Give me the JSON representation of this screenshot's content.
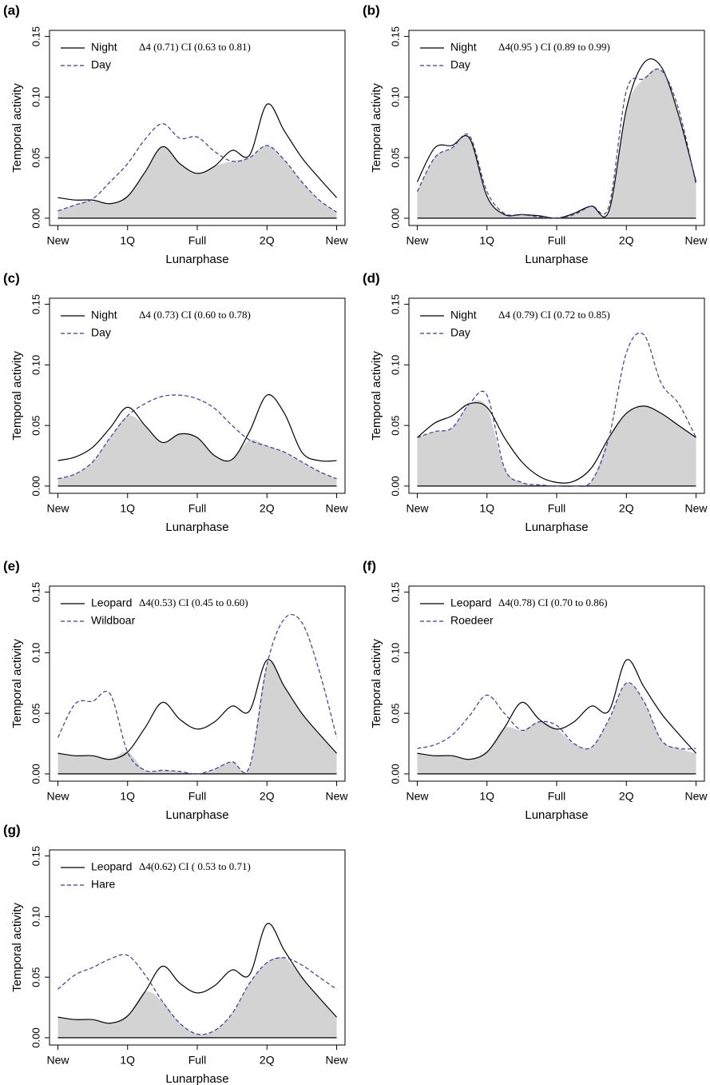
{
  "chart_data": [
    {
      "type": "line",
      "panel": "(a)",
      "annotation": "Δ4 (0.71) CI (0.63 to 0.81)",
      "xlabel": "Lunarphase",
      "ylabel": "Temporal activity",
      "x": [
        0,
        0.25,
        0.5,
        0.75,
        1,
        1.25,
        1.5,
        1.75,
        2,
        2.25,
        2.5,
        2.75,
        3,
        3.25,
        3.5,
        3.75,
        4
      ],
      "xlim": [
        -0.12,
        4.12
      ],
      "ylim": [
        -0.006,
        0.155
      ],
      "overlap_color": "#d3d3d3",
      "xticks": [
        {
          "value": 0,
          "label": "New"
        },
        {
          "value": 1,
          "label": "1Q"
        },
        {
          "value": 2,
          "label": "Full"
        },
        {
          "value": 3,
          "label": "2Q"
        },
        {
          "value": 4,
          "label": "New"
        }
      ],
      "yticks": [
        {
          "value": 0,
          "label": "0.00"
        },
        {
          "value": 0.05,
          "label": "0.05"
        },
        {
          "value": 0.1,
          "label": "0.10"
        },
        {
          "value": 0.15,
          "label": "0.15"
        }
      ],
      "series": [
        {
          "name": "Night",
          "color": "#000000",
          "style": "solid",
          "values": [
            0.017,
            0.015,
            0.015,
            0.012,
            0.018,
            0.038,
            0.059,
            0.045,
            0.037,
            0.043,
            0.056,
            0.052,
            0.094,
            0.072,
            0.05,
            0.033,
            0.017
          ]
        },
        {
          "name": "Day",
          "color": "#3a3a9a",
          "style": "dashed",
          "values": [
            0.006,
            0.011,
            0.016,
            0.03,
            0.045,
            0.065,
            0.078,
            0.066,
            0.067,
            0.055,
            0.047,
            0.05,
            0.06,
            0.048,
            0.03,
            0.015,
            0.005
          ]
        }
      ]
    },
    {
      "type": "line",
      "panel": "(b)",
      "annotation": "Δ4(0.95 ) CI (0.89 to 0.99)",
      "xlabel": "Lunarphase",
      "ylabel": "Temporal activity",
      "x": [
        0,
        0.25,
        0.5,
        0.75,
        1,
        1.25,
        1.5,
        1.75,
        2,
        2.25,
        2.5,
        2.75,
        3,
        3.25,
        3.5,
        3.75,
        4
      ],
      "xlim": [
        -0.12,
        4.12
      ],
      "ylim": [
        -0.006,
        0.155
      ],
      "overlap_color": "#d3d3d3",
      "xticks": [
        {
          "value": 0,
          "label": "New"
        },
        {
          "value": 1,
          "label": "1Q"
        },
        {
          "value": 2,
          "label": "Full"
        },
        {
          "value": 3,
          "label": "2Q"
        },
        {
          "value": 4,
          "label": "New"
        }
      ],
      "yticks": [
        {
          "value": 0,
          "label": "0.00"
        },
        {
          "value": 0.05,
          "label": "0.05"
        },
        {
          "value": 0.1,
          "label": "0.10"
        },
        {
          "value": 0.15,
          "label": "0.15"
        }
      ],
      "series": [
        {
          "name": "Night",
          "color": "#000000",
          "style": "solid",
          "values": [
            0.03,
            0.058,
            0.06,
            0.066,
            0.018,
            0.003,
            0.003,
            0.002,
            0.0,
            0.004,
            0.01,
            0.006,
            0.09,
            0.128,
            0.125,
            0.085,
            0.03
          ]
        },
        {
          "name": "Day",
          "color": "#3a3a9a",
          "style": "dashed",
          "values": [
            0.022,
            0.05,
            0.058,
            0.068,
            0.022,
            0.004,
            0.003,
            0.001,
            0.0,
            0.003,
            0.01,
            0.01,
            0.105,
            0.115,
            0.122,
            0.09,
            0.028
          ]
        }
      ]
    },
    {
      "type": "line",
      "panel": "(c)",
      "annotation": "Δ4 (0.73) CI (0.60 to 0.78)",
      "xlabel": "Lunarphase",
      "ylabel": "Temporal activity",
      "x": [
        0,
        0.25,
        0.5,
        0.75,
        1,
        1.25,
        1.5,
        1.75,
        2,
        2.25,
        2.5,
        2.75,
        3,
        3.25,
        3.5,
        3.75,
        4
      ],
      "xlim": [
        -0.12,
        4.12
      ],
      "ylim": [
        -0.006,
        0.155
      ],
      "overlap_color": "#d3d3d3",
      "xticks": [
        {
          "value": 0,
          "label": "New"
        },
        {
          "value": 1,
          "label": "1Q"
        },
        {
          "value": 2,
          "label": "Full"
        },
        {
          "value": 3,
          "label": "2Q"
        },
        {
          "value": 4,
          "label": "New"
        }
      ],
      "yticks": [
        {
          "value": 0,
          "label": "0.00"
        },
        {
          "value": 0.05,
          "label": "0.05"
        },
        {
          "value": 0.1,
          "label": "0.10"
        },
        {
          "value": 0.15,
          "label": "0.15"
        }
      ],
      "series": [
        {
          "name": "Night",
          "color": "#000000",
          "style": "solid",
          "values": [
            0.021,
            0.024,
            0.032,
            0.048,
            0.065,
            0.05,
            0.036,
            0.043,
            0.04,
            0.025,
            0.022,
            0.045,
            0.075,
            0.06,
            0.028,
            0.021,
            0.021
          ]
        },
        {
          "name": "Day",
          "color": "#3a3a9a",
          "style": "dashed",
          "values": [
            0.006,
            0.01,
            0.02,
            0.04,
            0.058,
            0.068,
            0.074,
            0.075,
            0.072,
            0.064,
            0.05,
            0.038,
            0.033,
            0.028,
            0.02,
            0.012,
            0.006
          ]
        }
      ]
    },
    {
      "type": "line",
      "panel": "(d)",
      "annotation": "Δ4 (0.79) CI (0.72 to 0.85)",
      "xlabel": "Lunarphase",
      "ylabel": "Temporal activity",
      "x": [
        0,
        0.25,
        0.5,
        0.75,
        1,
        1.25,
        1.5,
        1.75,
        2,
        2.25,
        2.5,
        2.75,
        3,
        3.25,
        3.5,
        3.75,
        4
      ],
      "xlim": [
        -0.12,
        4.12
      ],
      "ylim": [
        -0.006,
        0.155
      ],
      "overlap_color": "#d3d3d3",
      "xticks": [
        {
          "value": 0,
          "label": "New"
        },
        {
          "value": 1,
          "label": "1Q"
        },
        {
          "value": 2,
          "label": "Full"
        },
        {
          "value": 3,
          "label": "2Q"
        },
        {
          "value": 4,
          "label": "New"
        }
      ],
      "yticks": [
        {
          "value": 0,
          "label": "0.00"
        },
        {
          "value": 0.05,
          "label": "0.05"
        },
        {
          "value": 0.1,
          "label": "0.10"
        },
        {
          "value": 0.15,
          "label": "0.15"
        }
      ],
      "series": [
        {
          "name": "Night",
          "color": "#000000",
          "style": "solid",
          "values": [
            0.04,
            0.052,
            0.058,
            0.068,
            0.065,
            0.04,
            0.02,
            0.008,
            0.003,
            0.004,
            0.015,
            0.04,
            0.06,
            0.066,
            0.06,
            0.05,
            0.04
          ]
        },
        {
          "name": "Day",
          "color": "#3a3a9a",
          "style": "dashed",
          "values": [
            0.04,
            0.045,
            0.048,
            0.068,
            0.075,
            0.015,
            0.003,
            0.001,
            0.0,
            0.0,
            0.004,
            0.04,
            0.11,
            0.125,
            0.085,
            0.068,
            0.04
          ]
        }
      ]
    },
    {
      "type": "line",
      "panel": "(e)",
      "annotation": "Δ4(0.53) CI (0.45 to 0.60)",
      "xlabel": "Lunarphase",
      "ylabel": "Temporal activity",
      "x": [
        0,
        0.25,
        0.5,
        0.75,
        1,
        1.25,
        1.5,
        1.75,
        2,
        2.25,
        2.5,
        2.75,
        3,
        3.25,
        3.5,
        3.75,
        4
      ],
      "xlim": [
        -0.12,
        4.12
      ],
      "ylim": [
        -0.006,
        0.155
      ],
      "overlap_color": "#d3d3d3",
      "xticks": [
        {
          "value": 0,
          "label": "New"
        },
        {
          "value": 1,
          "label": "1Q"
        },
        {
          "value": 2,
          "label": "Full"
        },
        {
          "value": 3,
          "label": "2Q"
        },
        {
          "value": 4,
          "label": "New"
        }
      ],
      "yticks": [
        {
          "value": 0,
          "label": "0.00"
        },
        {
          "value": 0.05,
          "label": "0.05"
        },
        {
          "value": 0.1,
          "label": "0.10"
        },
        {
          "value": 0.15,
          "label": "0.15"
        }
      ],
      "series": [
        {
          "name": "Leopard",
          "color": "#000000",
          "style": "solid",
          "values": [
            0.017,
            0.015,
            0.015,
            0.012,
            0.018,
            0.038,
            0.059,
            0.045,
            0.037,
            0.043,
            0.056,
            0.052,
            0.094,
            0.072,
            0.05,
            0.033,
            0.017
          ]
        },
        {
          "name": "Wildboar",
          "color": "#3a3a9a",
          "style": "dashed",
          "values": [
            0.03,
            0.058,
            0.06,
            0.066,
            0.018,
            0.003,
            0.003,
            0.002,
            0.0,
            0.004,
            0.01,
            0.006,
            0.09,
            0.128,
            0.125,
            0.085,
            0.03
          ]
        }
      ]
    },
    {
      "type": "line",
      "panel": "(f)",
      "annotation": "Δ4(0.78) CI (0.70 to 0.86)",
      "xlabel": "Lunarphase",
      "ylabel": "Temporal activity",
      "x": [
        0,
        0.25,
        0.5,
        0.75,
        1,
        1.25,
        1.5,
        1.75,
        2,
        2.25,
        2.5,
        2.75,
        3,
        3.25,
        3.5,
        3.75,
        4
      ],
      "xlim": [
        -0.12,
        4.12
      ],
      "ylim": [
        -0.006,
        0.155
      ],
      "overlap_color": "#d3d3d3",
      "xticks": [
        {
          "value": 0,
          "label": "New"
        },
        {
          "value": 1,
          "label": "1Q"
        },
        {
          "value": 2,
          "label": "Full"
        },
        {
          "value": 3,
          "label": "2Q"
        },
        {
          "value": 4,
          "label": "New"
        }
      ],
      "yticks": [
        {
          "value": 0,
          "label": "0.00"
        },
        {
          "value": 0.05,
          "label": "0.05"
        },
        {
          "value": 0.1,
          "label": "0.10"
        },
        {
          "value": 0.15,
          "label": "0.15"
        }
      ],
      "series": [
        {
          "name": "Leopard",
          "color": "#000000",
          "style": "solid",
          "values": [
            0.017,
            0.015,
            0.015,
            0.012,
            0.018,
            0.038,
            0.059,
            0.045,
            0.037,
            0.043,
            0.056,
            0.052,
            0.094,
            0.072,
            0.05,
            0.033,
            0.017
          ]
        },
        {
          "name": "Roedeer",
          "color": "#3a3a9a",
          "style": "dashed",
          "values": [
            0.021,
            0.024,
            0.032,
            0.048,
            0.065,
            0.05,
            0.036,
            0.043,
            0.04,
            0.025,
            0.022,
            0.045,
            0.075,
            0.06,
            0.028,
            0.021,
            0.021
          ]
        }
      ]
    },
    {
      "type": "line",
      "panel": "(g)",
      "annotation": "Δ4(0.62) CI ( 0.53 to 0.71)",
      "xlabel": "Lunarphase",
      "ylabel": "Temporal activity",
      "x": [
        0,
        0.25,
        0.5,
        0.75,
        1,
        1.25,
        1.5,
        1.75,
        2,
        2.25,
        2.5,
        2.75,
        3,
        3.25,
        3.5,
        3.75,
        4
      ],
      "xlim": [
        -0.12,
        4.12
      ],
      "ylim": [
        -0.006,
        0.155
      ],
      "overlap_color": "#d3d3d3",
      "xticks": [
        {
          "value": 0,
          "label": "New"
        },
        {
          "value": 1,
          "label": "1Q"
        },
        {
          "value": 2,
          "label": "Full"
        },
        {
          "value": 3,
          "label": "2Q"
        },
        {
          "value": 4,
          "label": "New"
        }
      ],
      "yticks": [
        {
          "value": 0,
          "label": "0.00"
        },
        {
          "value": 0.05,
          "label": "0.05"
        },
        {
          "value": 0.1,
          "label": "0.10"
        },
        {
          "value": 0.15,
          "label": "0.15"
        }
      ],
      "series": [
        {
          "name": "Leopard",
          "color": "#000000",
          "style": "solid",
          "values": [
            0.017,
            0.015,
            0.015,
            0.012,
            0.018,
            0.038,
            0.059,
            0.045,
            0.037,
            0.043,
            0.056,
            0.052,
            0.094,
            0.072,
            0.05,
            0.033,
            0.017
          ]
        },
        {
          "name": "Hare",
          "color": "#3a3a9a",
          "style": "dashed",
          "values": [
            0.04,
            0.052,
            0.058,
            0.065,
            0.068,
            0.052,
            0.03,
            0.012,
            0.003,
            0.006,
            0.02,
            0.045,
            0.062,
            0.066,
            0.06,
            0.05,
            0.04
          ]
        }
      ]
    }
  ]
}
